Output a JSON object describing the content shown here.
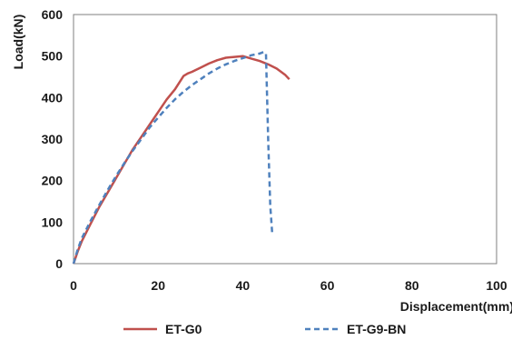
{
  "chart_data": {
    "type": "line",
    "xlabel": "Displacement(mm)",
    "ylabel": "Load(kN)",
    "xlim": [
      0,
      100
    ],
    "ylim": [
      0,
      600
    ],
    "x_ticks": [
      0,
      20,
      40,
      60,
      80,
      100
    ],
    "y_ticks": [
      0,
      100,
      200,
      300,
      400,
      500,
      600
    ],
    "grid": false,
    "legend_position": "bottom",
    "series": [
      {
        "name": "ET-G0",
        "color": "#c0504d",
        "line_style": "solid",
        "points": [
          [
            0,
            0
          ],
          [
            1,
            30
          ],
          [
            2,
            55
          ],
          [
            4,
            95
          ],
          [
            6,
            135
          ],
          [
            8,
            170
          ],
          [
            10,
            205
          ],
          [
            12,
            240
          ],
          [
            14,
            275
          ],
          [
            16,
            305
          ],
          [
            18,
            335
          ],
          [
            20,
            365
          ],
          [
            22,
            395
          ],
          [
            24,
            420
          ],
          [
            26,
            452
          ],
          [
            27,
            458
          ],
          [
            28,
            462
          ],
          [
            30,
            472
          ],
          [
            32,
            482
          ],
          [
            34,
            490
          ],
          [
            36,
            496
          ],
          [
            38,
            498
          ],
          [
            40,
            500
          ],
          [
            42,
            494
          ],
          [
            44,
            488
          ],
          [
            46,
            480
          ],
          [
            48,
            470
          ],
          [
            50,
            455
          ],
          [
            51,
            444
          ]
        ]
      },
      {
        "name": "ET-G9-BN",
        "color": "#4f81bd",
        "line_style": "dashed",
        "points": [
          [
            0,
            0
          ],
          [
            1,
            35
          ],
          [
            2,
            62
          ],
          [
            4,
            102
          ],
          [
            6,
            140
          ],
          [
            8,
            176
          ],
          [
            10,
            210
          ],
          [
            12,
            242
          ],
          [
            14,
            272
          ],
          [
            16,
            300
          ],
          [
            18,
            328
          ],
          [
            20,
            352
          ],
          [
            22,
            375
          ],
          [
            24,
            396
          ],
          [
            26,
            414
          ],
          [
            28,
            430
          ],
          [
            30,
            444
          ],
          [
            32,
            458
          ],
          [
            34,
            470
          ],
          [
            36,
            480
          ],
          [
            38,
            488
          ],
          [
            40,
            495
          ],
          [
            42,
            502
          ],
          [
            44,
            506
          ],
          [
            45,
            510
          ],
          [
            45.5,
            505
          ],
          [
            46,
            300
          ],
          [
            46.5,
            140
          ],
          [
            47,
            68
          ]
        ]
      }
    ]
  }
}
